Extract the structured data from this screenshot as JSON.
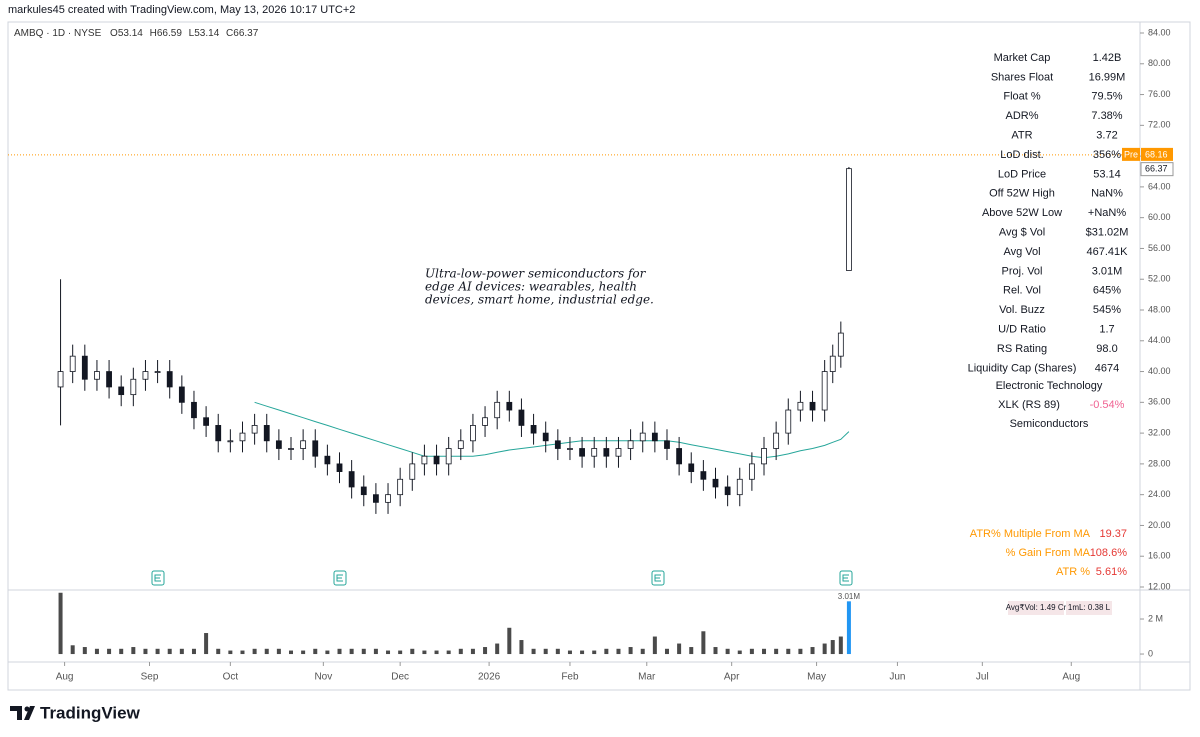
{
  "header": {
    "credit": "markules45 created with TradingView.com, May 13, 2026 10:17 UTC+2"
  },
  "chart_data": {
    "type": "candlestick",
    "symbol": "AMBQ · 1D · NYSE",
    "ohlc_labels": [
      "O",
      "H",
      "L",
      "C"
    ],
    "annotation": [
      "Ultra-low-power semiconductors for",
      "edge AI devices: wearables, health",
      "devices, smart home, industrial edge."
    ],
    "x": [
      0,
      3,
      6,
      9,
      12,
      15,
      18,
      21,
      24,
      27,
      30,
      33,
      36,
      39,
      42,
      45,
      48,
      51,
      54,
      57,
      60,
      63,
      66,
      69,
      72,
      75,
      78,
      81,
      84,
      87,
      90,
      93,
      96,
      99,
      102,
      105,
      108,
      111,
      114,
      117,
      120,
      123,
      126,
      129,
      132,
      135,
      138,
      141,
      144,
      147,
      150,
      153,
      156,
      159,
      162,
      165,
      168,
      171,
      174,
      177,
      180,
      183,
      186,
      189,
      191,
      193,
      195
    ],
    "open": [
      38,
      40,
      42,
      39,
      40,
      38,
      37,
      39,
      40,
      40,
      38,
      36,
      34,
      33,
      31,
      31,
      32,
      33,
      31,
      30,
      30,
      31,
      29,
      28,
      27,
      25,
      24,
      23,
      24,
      26,
      28,
      29,
      28,
      30,
      31,
      33,
      34,
      36,
      35,
      33,
      32,
      31,
      30,
      30,
      29,
      30,
      29,
      30,
      31,
      32,
      31,
      30,
      28,
      27,
      26,
      25,
      24,
      26,
      28,
      30,
      32,
      35,
      36,
      35,
      40,
      42,
      53.14
    ],
    "high": [
      52,
      43.5,
      43.5,
      41.5,
      41.5,
      39.5,
      40.5,
      41.5,
      41.5,
      41.5,
      39.5,
      37.5,
      35.5,
      34.5,
      32.5,
      33.5,
      34.5,
      34.5,
      32.5,
      31.5,
      32.5,
      32.5,
      30.5,
      29.5,
      28.5,
      26.5,
      25.5,
      25.5,
      27.5,
      29.5,
      30.5,
      30.5,
      31.5,
      32.5,
      34.5,
      35.5,
      37.5,
      37.5,
      36.5,
      34.5,
      33.5,
      32.5,
      31.5,
      31.5,
      31.5,
      31.5,
      31.5,
      32.5,
      33.5,
      33.5,
      32.5,
      31.5,
      29.5,
      28.5,
      27.5,
      26.5,
      27.5,
      29.5,
      31.5,
      33.5,
      36.5,
      37.5,
      37.5,
      41.5,
      43.5,
      46.5,
      66.59
    ],
    "low": [
      33,
      38.5,
      37.5,
      37.5,
      36.5,
      35.5,
      35.5,
      37.5,
      38.5,
      36.5,
      34.5,
      32.5,
      31.5,
      29.5,
      29.5,
      29.5,
      30.5,
      29.5,
      28.5,
      28.5,
      28.5,
      27.5,
      26.5,
      25.5,
      23.5,
      22.5,
      21.5,
      21.5,
      22.5,
      24.5,
      26.5,
      26.5,
      26.5,
      28.5,
      29.5,
      31.5,
      32.5,
      33.5,
      31.5,
      30.5,
      29.5,
      28.5,
      28.5,
      27.5,
      27.5,
      27.5,
      27.5,
      28.5,
      29.5,
      29.5,
      28.5,
      26.5,
      25.5,
      24.5,
      23.5,
      22.5,
      22.5,
      24.5,
      26.5,
      28.5,
      30.5,
      33.5,
      33.5,
      33.5,
      38.5,
      40.5,
      53.14
    ],
    "close": [
      40,
      42,
      39,
      40,
      38,
      37,
      39,
      40,
      40,
      38,
      36,
      34,
      33,
      31,
      31,
      32,
      33,
      31,
      30,
      30,
      31,
      29,
      28,
      27,
      25,
      24,
      23,
      24,
      26,
      28,
      29,
      28,
      30,
      31,
      33,
      34,
      36,
      35,
      33,
      32,
      31,
      30,
      30,
      29,
      30,
      29,
      30,
      31,
      32,
      31,
      30,
      28,
      27,
      26,
      25,
      24,
      26,
      28,
      30,
      32,
      35,
      36,
      35,
      40,
      42,
      45,
      66.37
    ],
    "volume": {
      "values": [
        3.5,
        0.5,
        0.4,
        0.3,
        0.3,
        0.3,
        0.4,
        0.3,
        0.3,
        0.3,
        0.3,
        0.3,
        1.2,
        0.3,
        0.2,
        0.2,
        0.3,
        0.3,
        0.3,
        0.2,
        0.2,
        0.3,
        0.2,
        0.3,
        0.3,
        0.3,
        0.3,
        0.2,
        0.2,
        0.3,
        0.2,
        0.2,
        0.2,
        0.3,
        0.3,
        0.4,
        0.6,
        1.5,
        0.8,
        0.3,
        0.3,
        0.3,
        0.2,
        0.2,
        0.2,
        0.3,
        0.3,
        0.4,
        0.3,
        1.0,
        0.3,
        0.6,
        0.4,
        1.3,
        0.4,
        0.3,
        0.2,
        0.3,
        0.3,
        0.3,
        0.3,
        0.3,
        0.4,
        0.6,
        0.8,
        1.0,
        3.01
      ],
      "value_labels": [
        null,
        null,
        null,
        null,
        null,
        null,
        null,
        null,
        null,
        null,
        null,
        null,
        null,
        null,
        null,
        null,
        null,
        null,
        null,
        null,
        null,
        null,
        null,
        null,
        null,
        null,
        null,
        null,
        null,
        null,
        null,
        null,
        null,
        null,
        null,
        null,
        null,
        null,
        null,
        null,
        null,
        null,
        null,
        null,
        null,
        null,
        null,
        null,
        null,
        null,
        null,
        null,
        null,
        null,
        null,
        null,
        null,
        null,
        null,
        null,
        null,
        null,
        null,
        null,
        null,
        null,
        "3.01M"
      ]
    },
    "ma": {
      "color": "#26a69a",
      "values": [
        null,
        null,
        null,
        null,
        null,
        null,
        null,
        null,
        null,
        null,
        null,
        null,
        null,
        null,
        null,
        null,
        36,
        35.5,
        35,
        34.5,
        34,
        33.5,
        33,
        32.5,
        32,
        31.5,
        31,
        30.5,
        30,
        29.5,
        29,
        29,
        29,
        29,
        29,
        29.2,
        29.5,
        29.8,
        30,
        30.2,
        30.4,
        30.6,
        30.8,
        31,
        31,
        31,
        31,
        31,
        31,
        31,
        31,
        30.8,
        30.5,
        30.2,
        29.9,
        29.6,
        29.3,
        29,
        28.8,
        29,
        29.3,
        29.7,
        30,
        30.4,
        30.8,
        31.2,
        32.2
      ]
    },
    "xlim": [
      -13,
      267
    ],
    "xticks": [
      {
        "value": 1,
        "label": "Aug"
      },
      {
        "value": 22,
        "label": "Sep"
      },
      {
        "value": 42,
        "label": "Oct"
      },
      {
        "value": 65,
        "label": "Nov"
      },
      {
        "value": 84,
        "label": "Dec"
      },
      {
        "value": 106,
        "label": "2026"
      },
      {
        "value": 126,
        "label": "Feb"
      },
      {
        "value": 145,
        "label": "Mar"
      },
      {
        "value": 166,
        "label": "Apr"
      },
      {
        "value": 187,
        "label": "May"
      },
      {
        "value": 207,
        "label": "Jun"
      },
      {
        "value": 228,
        "label": "Jul"
      },
      {
        "value": 250,
        "label": "Aug"
      }
    ],
    "ylim": [
      11.87,
      85.43
    ],
    "yticks": [
      {
        "value": 84,
        "label": "84.00"
      },
      {
        "value": 80,
        "label": "80.00"
      },
      {
        "value": 76,
        "label": "76.00"
      },
      {
        "value": 72,
        "label": "72.00"
      },
      {
        "value": 68,
        "label": "68.00"
      },
      {
        "value": 64,
        "label": "64.00"
      },
      {
        "value": 60,
        "label": "60.00"
      },
      {
        "value": 56,
        "label": "56.00"
      },
      {
        "value": 52,
        "label": "52.00"
      },
      {
        "value": 48,
        "label": "48.00"
      },
      {
        "value": 44,
        "label": "44.00"
      },
      {
        "value": 40,
        "label": "40.00"
      },
      {
        "value": 36,
        "label": "36.00"
      },
      {
        "value": 32,
        "label": "32.00"
      },
      {
        "value": 28,
        "label": "28.00"
      },
      {
        "value": 24,
        "label": "24.00"
      },
      {
        "value": 20,
        "label": "20.00"
      },
      {
        "value": 16,
        "label": "16.00"
      },
      {
        "value": 12,
        "label": "12.00"
      }
    ],
    "volume_ylim": [
      -0.34,
      3.6
    ],
    "volume_yticks": [
      {
        "value": 2,
        "label": "2 M"
      },
      0
    ],
    "pre_label": "Pre",
    "pre_price": {
      "value": 68.16,
      "label": "68.16"
    },
    "last_price": {
      "value": 66.37,
      "label": "66.37"
    },
    "up_color": "#ffffff",
    "down_color": "#131722",
    "volume_color": "#4a4a4a",
    "volume_last_color": "#2196f3",
    "pre_color": "#ff9800",
    "volume_badges": [
      "Avg₹Vol: 1.49 Cr",
      "1mL: 0.38 L"
    ],
    "grid": false
  },
  "stats": [
    {
      "label": "Market Cap",
      "value": "1.42B"
    },
    {
      "label": "Shares Float",
      "value": "16.99M"
    },
    {
      "label": "Float %",
      "value": "79.5%"
    },
    {
      "label": "ADR%",
      "value": "7.38%"
    },
    {
      "label": "ATR",
      "value": "3.72"
    },
    {
      "label": "LoD dist.",
      "value": "356%"
    },
    {
      "label": "LoD Price",
      "value": "53.14"
    },
    {
      "label": "Off 52W High",
      "value": "NaN%"
    },
    {
      "label": "Above 52W Low",
      "value": "+NaN%"
    },
    {
      "label": "Avg $ Vol",
      "value": "$31.02M"
    },
    {
      "label": "Avg Vol",
      "value": "467.41K"
    },
    {
      "label": "Proj. Vol",
      "value": "3.01M"
    },
    {
      "label": "Rel. Vol",
      "value": "645%"
    },
    {
      "label": "Vol. Buzz",
      "value": "545%"
    },
    {
      "label": "U/D Ratio",
      "value": "1.7"
    },
    {
      "label": "RS Rating",
      "value": "98.0"
    },
    {
      "label": "Liquidity Cap (Shares)",
      "value": "4674"
    }
  ],
  "sector": "Electronic Technology",
  "xlk": {
    "label": "XLK (RS 89)",
    "value": "-0.54%"
  },
  "industry": "Semiconductors",
  "ma_stats": [
    {
      "label": "ATR% Multiple From MA",
      "value": "19.37"
    },
    {
      "label": "% Gain From MA",
      "value": "108.6%"
    },
    {
      "label": "ATR %",
      "value": "5.61%"
    }
  ],
  "footer": {
    "brand": "TradingView"
  }
}
